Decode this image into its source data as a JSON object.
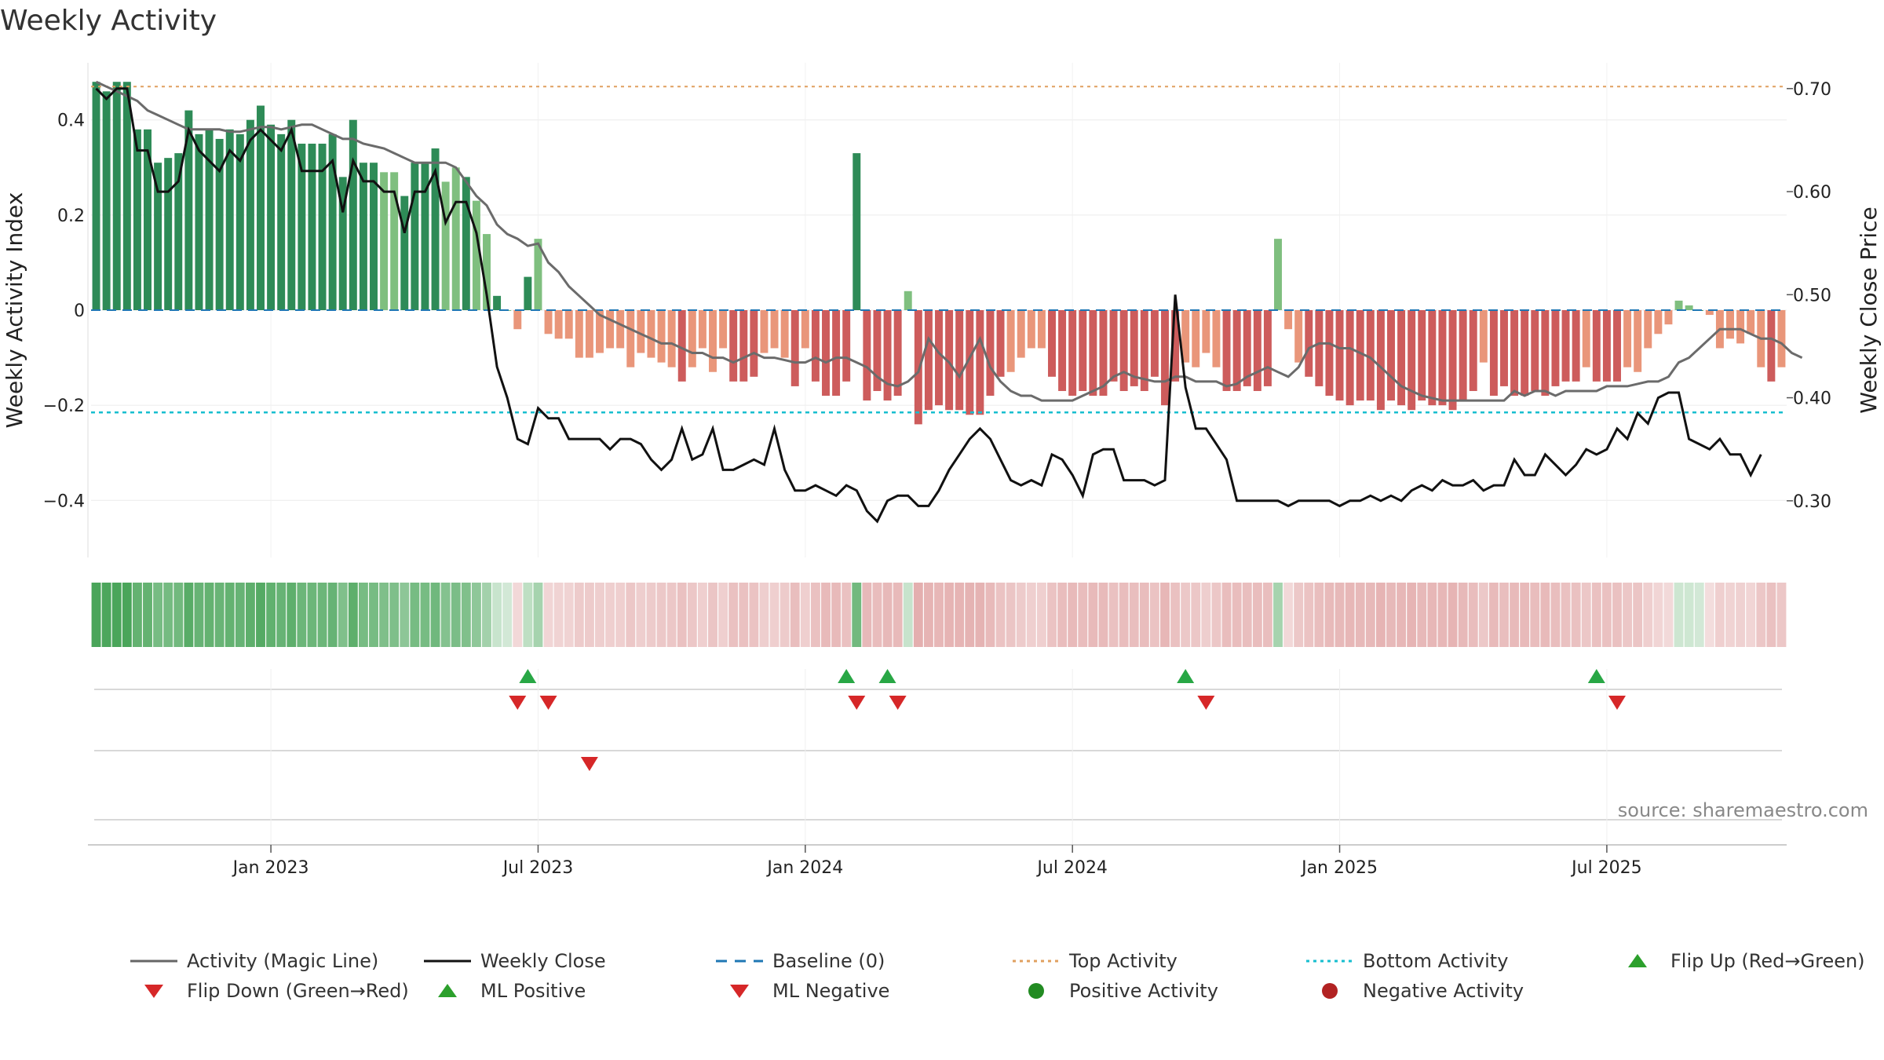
{
  "chart_data": {
    "type": "bar",
    "title": "Weekly Activity",
    "ylabel": "Weekly Activity Index",
    "ylabel_right": "Weekly Close Price",
    "source": "source: sharemaestro.com",
    "ylim": [
      -0.52,
      0.52
    ],
    "ylim_right": [
      0.245,
      0.725
    ],
    "yticks": [
      {
        "value": 0.4,
        "label": "0.4"
      },
      {
        "value": 0.2,
        "label": "0.2"
      },
      {
        "value": 0,
        "label": "0"
      },
      {
        "value": -0.2,
        "label": "−0.2"
      },
      {
        "value": -0.4,
        "label": "−0.4"
      }
    ],
    "yticks_right": [
      {
        "value": 0.7,
        "label": "0.70"
      },
      {
        "value": 0.6,
        "label": "0.60"
      },
      {
        "value": 0.5,
        "label": "0.50"
      },
      {
        "value": 0.4,
        "label": "0.40"
      },
      {
        "value": 0.3,
        "label": "0.30"
      }
    ],
    "xticks": [
      {
        "week": 17,
        "label": "Jan 2023"
      },
      {
        "week": 43,
        "label": "Jul 2023"
      },
      {
        "week": 69,
        "label": "Jan 2024"
      },
      {
        "week": 95,
        "label": "Jul 2024"
      },
      {
        "week": 121,
        "label": "Jan 2025"
      },
      {
        "week": 147,
        "label": "Jul 2025"
      }
    ],
    "top_activity": 0.47,
    "bottom_activity": -0.215,
    "activity": [
      0.48,
      0.46,
      0.48,
      0.48,
      0.38,
      0.38,
      0.31,
      0.32,
      0.33,
      0.42,
      0.37,
      0.38,
      0.36,
      0.38,
      0.37,
      0.4,
      0.43,
      0.39,
      0.37,
      0.4,
      0.35,
      0.35,
      0.35,
      0.37,
      0.28,
      0.4,
      0.31,
      0.31,
      0.29,
      0.29,
      0.24,
      0.31,
      0.31,
      0.34,
      0.27,
      0.3,
      0.28,
      0.23,
      0.16,
      0.03,
      0.0,
      -0.04,
      0.07,
      0.15,
      -0.05,
      -0.06,
      -0.06,
      -0.1,
      -0.1,
      -0.09,
      -0.08,
      -0.08,
      -0.12,
      -0.09,
      -0.1,
      -0.11,
      -0.12,
      -0.15,
      -0.12,
      -0.08,
      -0.13,
      -0.08,
      -0.15,
      -0.15,
      -0.14,
      -0.09,
      -0.08,
      -0.1,
      -0.16,
      -0.08,
      -0.15,
      -0.18,
      -0.18,
      -0.15,
      0.33,
      -0.19,
      -0.17,
      -0.19,
      -0.18,
      0.04,
      -0.24,
      -0.21,
      -0.2,
      -0.21,
      -0.21,
      -0.22,
      -0.22,
      -0.18,
      -0.14,
      -0.13,
      -0.1,
      -0.08,
      -0.08,
      -0.14,
      -0.17,
      -0.18,
      -0.17,
      -0.18,
      -0.18,
      -0.15,
      -0.17,
      -0.16,
      -0.17,
      -0.14,
      -0.2,
      -0.15,
      -0.11,
      -0.12,
      -0.09,
      -0.12,
      -0.17,
      -0.17,
      -0.16,
      -0.17,
      -0.16,
      0.15,
      -0.04,
      -0.11,
      -0.14,
      -0.16,
      -0.18,
      -0.19,
      -0.2,
      -0.19,
      -0.19,
      -0.21,
      -0.19,
      -0.2,
      -0.21,
      -0.19,
      -0.2,
      -0.2,
      -0.21,
      -0.19,
      -0.17,
      -0.11,
      -0.18,
      -0.16,
      -0.18,
      -0.18,
      -0.17,
      -0.18,
      -0.16,
      -0.15,
      -0.15,
      -0.12,
      -0.15,
      -0.15,
      -0.15,
      -0.12,
      -0.13,
      -0.08,
      -0.05,
      -0.03,
      0.02,
      0.01,
      0.0,
      -0.01,
      -0.08,
      -0.06,
      -0.07,
      -0.05,
      -0.12,
      -0.15,
      -0.12
    ],
    "magic_line": [
      0.48,
      0.47,
      0.46,
      0.45,
      0.44,
      0.42,
      0.41,
      0.4,
      0.39,
      0.38,
      0.38,
      0.38,
      0.38,
      0.375,
      0.375,
      0.38,
      0.385,
      0.385,
      0.38,
      0.385,
      0.39,
      0.39,
      0.38,
      0.37,
      0.36,
      0.36,
      0.35,
      0.345,
      0.34,
      0.33,
      0.32,
      0.31,
      0.31,
      0.31,
      0.31,
      0.3,
      0.27,
      0.24,
      0.22,
      0.18,
      0.16,
      0.15,
      0.135,
      0.14,
      0.1,
      0.08,
      0.05,
      0.03,
      0.01,
      -0.01,
      -0.02,
      -0.03,
      -0.04,
      -0.05,
      -0.06,
      -0.07,
      -0.07,
      -0.08,
      -0.09,
      -0.09,
      -0.1,
      -0.1,
      -0.11,
      -0.1,
      -0.09,
      -0.1,
      -0.1,
      -0.105,
      -0.11,
      -0.11,
      -0.1,
      -0.11,
      -0.1,
      -0.1,
      -0.11,
      -0.12,
      -0.14,
      -0.155,
      -0.16,
      -0.15,
      -0.13,
      -0.06,
      -0.09,
      -0.11,
      -0.14,
      -0.1,
      -0.06,
      -0.12,
      -0.15,
      -0.17,
      -0.18,
      -0.18,
      -0.19,
      -0.19,
      -0.19,
      -0.19,
      -0.18,
      -0.17,
      -0.16,
      -0.14,
      -0.13,
      -0.14,
      -0.145,
      -0.15,
      -0.15,
      -0.14,
      -0.14,
      -0.15,
      -0.15,
      -0.15,
      -0.16,
      -0.155,
      -0.14,
      -0.13,
      -0.12,
      -0.13,
      -0.14,
      -0.12,
      -0.08,
      -0.07,
      -0.07,
      -0.08,
      -0.08,
      -0.09,
      -0.1,
      -0.12,
      -0.14,
      -0.16,
      -0.17,
      -0.18,
      -0.185,
      -0.19,
      -0.19,
      -0.19,
      -0.19,
      -0.19,
      -0.19,
      -0.19,
      -0.17,
      -0.18,
      -0.17,
      -0.17,
      -0.18,
      -0.17,
      -0.17,
      -0.17,
      -0.17,
      -0.16,
      -0.16,
      -0.16,
      -0.155,
      -0.15,
      -0.15,
      -0.14,
      -0.11,
      -0.1,
      -0.08,
      -0.06,
      -0.04,
      -0.04,
      -0.04,
      -0.05,
      -0.06,
      -0.06,
      -0.07,
      -0.09,
      -0.1
    ],
    "weekly_close": [
      0.7,
      0.69,
      0.7,
      0.7,
      0.64,
      0.64,
      0.6,
      0.6,
      0.61,
      0.66,
      0.64,
      0.63,
      0.62,
      0.64,
      0.63,
      0.65,
      0.66,
      0.65,
      0.64,
      0.66,
      0.62,
      0.62,
      0.62,
      0.63,
      0.58,
      0.63,
      0.61,
      0.61,
      0.6,
      0.6,
      0.56,
      0.6,
      0.6,
      0.62,
      0.57,
      0.59,
      0.59,
      0.56,
      0.5,
      0.43,
      0.4,
      0.36,
      0.355,
      0.39,
      0.38,
      0.38,
      0.36,
      0.36,
      0.36,
      0.36,
      0.35,
      0.36,
      0.36,
      0.355,
      0.34,
      0.33,
      0.34,
      0.37,
      0.34,
      0.345,
      0.37,
      0.33,
      0.33,
      0.335,
      0.34,
      0.335,
      0.37,
      0.33,
      0.31,
      0.31,
      0.315,
      0.31,
      0.305,
      0.315,
      0.31,
      0.29,
      0.28,
      0.3,
      0.305,
      0.305,
      0.295,
      0.295,
      0.31,
      0.33,
      0.345,
      0.36,
      0.37,
      0.36,
      0.34,
      0.32,
      0.315,
      0.32,
      0.315,
      0.345,
      0.34,
      0.325,
      0.305,
      0.345,
      0.35,
      0.35,
      0.32,
      0.32,
      0.32,
      0.315,
      0.32,
      0.5,
      0.41,
      0.37,
      0.37,
      0.355,
      0.34,
      0.3,
      0.3,
      0.3,
      0.3,
      0.3,
      0.295,
      0.3,
      0.3,
      0.3,
      0.3,
      0.295,
      0.3,
      0.3,
      0.305,
      0.3,
      0.305,
      0.3,
      0.31,
      0.315,
      0.31,
      0.32,
      0.315,
      0.315,
      0.32,
      0.31,
      0.315,
      0.315,
      0.34,
      0.325,
      0.325,
      0.345,
      0.335,
      0.325,
      0.335,
      0.35,
      0.345,
      0.35,
      0.37,
      0.36,
      0.385,
      0.375,
      0.4,
      0.405,
      0.405,
      0.36,
      0.355,
      0.35,
      0.36,
      0.345,
      0.345,
      0.325,
      0.345
    ],
    "flip_up_weeks": [
      42,
      73,
      77,
      106,
      146
    ],
    "flip_down_weeks": [
      41,
      44,
      74,
      78,
      108,
      148
    ],
    "ml_negative_weeks": [
      48
    ],
    "legend": [
      {
        "label": "Activity (Magic Line)",
        "kind": "line",
        "color": "#666666"
      },
      {
        "label": "Weekly Close",
        "kind": "line",
        "color": "#111111"
      },
      {
        "label": "Baseline (0)",
        "kind": "dash",
        "color": "#1f77b4"
      },
      {
        "label": "Top Activity",
        "kind": "dot",
        "color": "#e0a060"
      },
      {
        "label": "Bottom Activity",
        "kind": "dot",
        "color": "#17becf"
      },
      {
        "label": "Flip Up (Red→Green)",
        "kind": "tri-up",
        "color": "#2ca02c"
      },
      {
        "label": "Flip Down (Green→Red)",
        "kind": "tri-down",
        "color": "#d62728"
      },
      {
        "label": "ML Positive",
        "kind": "tri-up",
        "color": "#2ca02c"
      },
      {
        "label": "ML Negative",
        "kind": "tri-down",
        "color": "#d62728"
      },
      {
        "label": "Positive Activity",
        "kind": "circle",
        "color": "#228b22"
      },
      {
        "label": "Negative Activity",
        "kind": "circle",
        "color": "#b22222"
      }
    ],
    "colors": {
      "bar_pos_dark": "#2e8b57",
      "bar_pos_light": "#7fbf7f",
      "bar_neg_dark": "#cd5c5c",
      "bar_neg_light": "#e9967a",
      "strip_green": "#4aa55a",
      "strip_red": "#d48080"
    }
  }
}
